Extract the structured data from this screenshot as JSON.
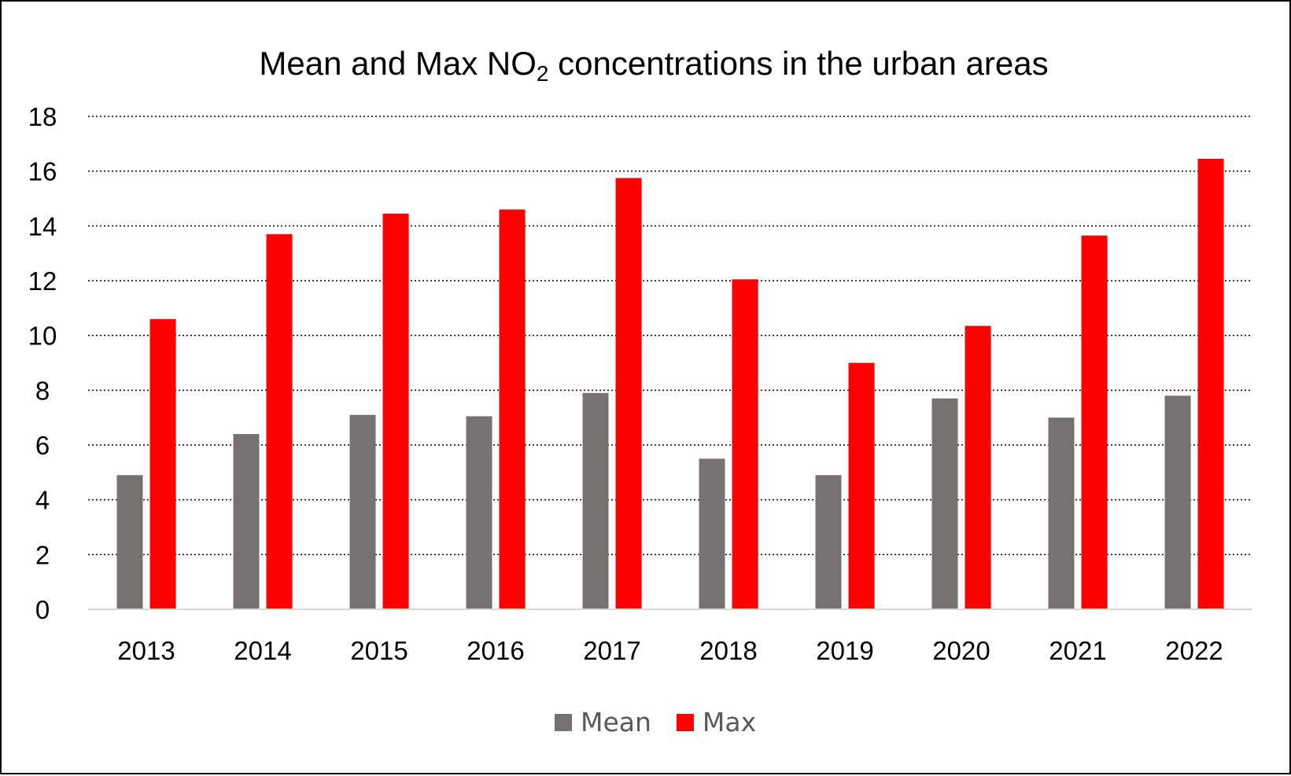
{
  "chart_data": {
    "type": "bar",
    "title": "Mean and Max NO",
    "title_subscript": "2",
    "title_suffix": " concentrations in the urban areas",
    "xlabel": "",
    "ylabel": "",
    "ylim": [
      0,
      18
    ],
    "yticks": [
      0,
      2,
      4,
      6,
      8,
      10,
      12,
      14,
      16,
      18
    ],
    "grid": true,
    "legend_position": "bottom",
    "categories": [
      "2013",
      "2014",
      "2015",
      "2016",
      "2017",
      "2018",
      "2019",
      "2020",
      "2021",
      "2022"
    ],
    "series": [
      {
        "name": "Mean",
        "color": "#767171",
        "values": [
          4.9,
          6.4,
          7.1,
          7.05,
          7.9,
          5.5,
          4.9,
          7.7,
          7.0,
          7.8
        ]
      },
      {
        "name": "Max",
        "color": "#ff0000",
        "values": [
          10.6,
          13.7,
          14.45,
          14.6,
          15.75,
          12.05,
          9.0,
          10.35,
          13.65,
          16.45
        ]
      }
    ]
  }
}
